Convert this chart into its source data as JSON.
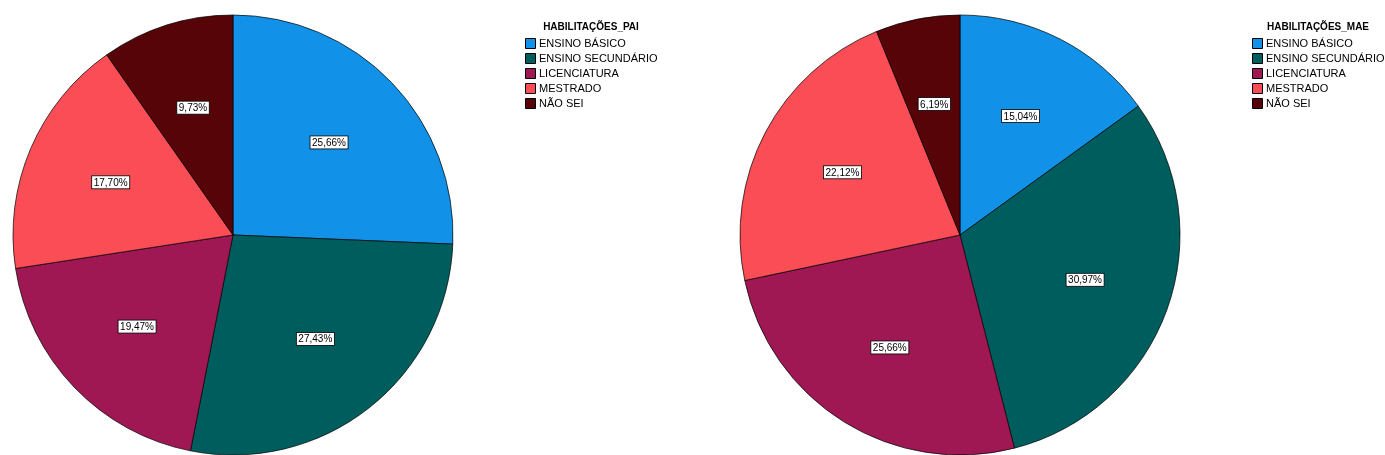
{
  "chart_data": [
    {
      "type": "pie",
      "legend_title": "HABILITAÇÕES_PAI",
      "legend": "top right",
      "categories": [
        "ENSINO BÁSICO",
        "ENSINO SECUNDÁRIO",
        "LICENCIATURA",
        "MESTRADO",
        "NÃO SEI"
      ],
      "values": [
        25.66,
        27.43,
        19.47,
        17.7,
        9.73
      ],
      "colors": [
        "#1192e8",
        "#005d5d",
        "#9f1853",
        "#fa4d56",
        "#570408"
      ],
      "value_labels": [
        "25,66%",
        "27,43%",
        "19,47%",
        "17,70%",
        "9,73%"
      ]
    },
    {
      "type": "pie",
      "legend_title": "HABILITAÇÕES_MAE",
      "legend": "top right",
      "categories": [
        "ENSINO BÁSICO",
        "ENSINO SECUNDÁRIO",
        "LICENCIATURA",
        "MESTRADO",
        "NÃO SEI"
      ],
      "values": [
        15.04,
        30.97,
        25.66,
        22.12,
        6.19
      ],
      "colors": [
        "#1192e8",
        "#005d5d",
        "#9f1853",
        "#fa4d56",
        "#570408"
      ],
      "value_labels": [
        "15,04%",
        "30,97%",
        "25,66%",
        "22,12%",
        "6,19%"
      ]
    }
  ]
}
